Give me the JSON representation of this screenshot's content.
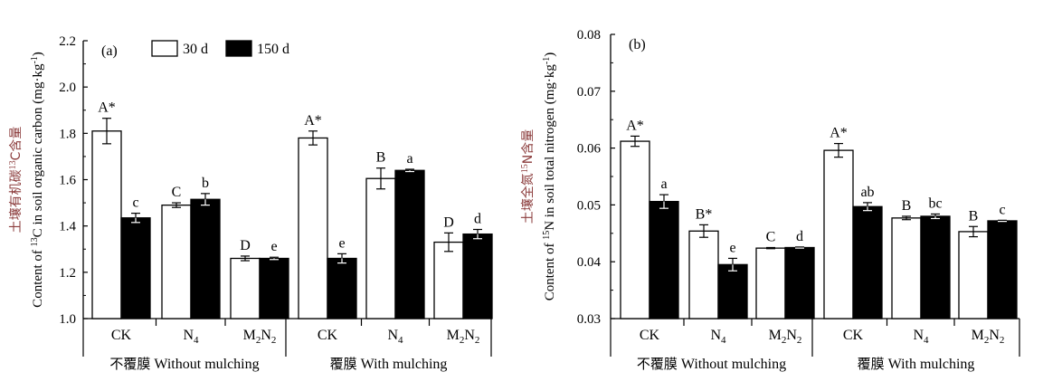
{
  "legend": [
    {
      "label": "30 d",
      "fill": "#ffffff"
    },
    {
      "label": "150 d",
      "fill": "#000000"
    }
  ],
  "chart_data": [
    {
      "type": "bar",
      "panel_label": "(a)",
      "ylabel_cn": "土壤有机碳",
      "ylabel_cn_sup": "13",
      "ylabel_cn_tail": "C含量",
      "ylabel_en_pre": "Content of ",
      "ylabel_en_sup": "13",
      "ylabel_en_mid": "C in soil organic carbon (mg·kg",
      "ylabel_en_sup2": "-1",
      "ylabel_en_tail": ")",
      "ylim": [
        1.0,
        2.2
      ],
      "yticks": [
        "1.0",
        "1.2",
        "1.4",
        "1.6",
        "1.8",
        "2.0",
        "2.2"
      ],
      "categories": [
        {
          "main": "CK",
          "sub": ""
        },
        {
          "main": "N",
          "sub": "4"
        },
        {
          "main": "M",
          "sub": "2",
          "main2": "N",
          "sub2": "2"
        },
        {
          "main": "CK",
          "sub": ""
        },
        {
          "main": "N",
          "sub": "4"
        },
        {
          "main": "M",
          "sub": "2",
          "main2": "N",
          "sub2": "2"
        }
      ],
      "groups": [
        {
          "label_cn": "不覆膜",
          "label_en": "Without mulching"
        },
        {
          "label_cn": "覆膜",
          "label_en": "With mulching"
        }
      ],
      "series": [
        {
          "name": "30 d",
          "values": [
            1.81,
            1.49,
            1.26,
            1.78,
            1.605,
            1.33
          ],
          "errors": [
            0.055,
            0.01,
            0.01,
            0.03,
            0.045,
            0.04
          ],
          "letters": [
            "A*",
            "C",
            "D",
            "A*",
            "B",
            "D"
          ]
        },
        {
          "name": "150 d",
          "values": [
            1.435,
            1.515,
            1.26,
            1.26,
            1.64,
            1.365
          ],
          "errors": [
            0.02,
            0.025,
            0.005,
            0.02,
            0.005,
            0.02
          ],
          "letters": [
            "c",
            "b",
            "e",
            "e",
            "a",
            "d"
          ]
        }
      ]
    },
    {
      "type": "bar",
      "panel_label": "(b)",
      "ylabel_cn": "土壤全氮",
      "ylabel_cn_sup": "15",
      "ylabel_cn_tail": "N含量",
      "ylabel_en_pre": "Content of ",
      "ylabel_en_sup": "15",
      "ylabel_en_mid": "N in soil total nitrogen (mg·kg",
      "ylabel_en_sup2": "-1",
      "ylabel_en_tail": ")",
      "ylim": [
        0.03,
        0.08
      ],
      "yticks": [
        "0.03",
        "0.04",
        "0.05",
        "0.06",
        "0.07",
        "0.08"
      ],
      "categories": [
        {
          "main": "CK",
          "sub": ""
        },
        {
          "main": "N",
          "sub": "4"
        },
        {
          "main": "M",
          "sub": "2",
          "main2": "N",
          "sub2": "2"
        },
        {
          "main": "CK",
          "sub": ""
        },
        {
          "main": "N",
          "sub": "4"
        },
        {
          "main": "M",
          "sub": "2",
          "main2": "N",
          "sub2": "2"
        }
      ],
      "groups": [
        {
          "label_cn": "不覆膜",
          "label_en": "Without mulching"
        },
        {
          "label_cn": "覆膜",
          "label_en": "With mulching"
        }
      ],
      "series": [
        {
          "name": "30 d",
          "values": [
            0.0612,
            0.0454,
            0.0424,
            0.0596,
            0.0477,
            0.0453
          ],
          "errors": [
            0.0009,
            0.0011,
            0.0001,
            0.0012,
            0.0003,
            0.0009
          ],
          "letters": [
            "A*",
            "B*",
            "C",
            "A*",
            "B",
            "B"
          ]
        },
        {
          "name": "150 d",
          "values": [
            0.0506,
            0.0395,
            0.0425,
            0.0497,
            0.048,
            0.0472
          ],
          "errors": [
            0.0012,
            0.0011,
            0.0001,
            0.0007,
            0.0004,
            0.0001
          ],
          "letters": [
            "a",
            "e",
            "d",
            "ab",
            "bc",
            "c"
          ]
        }
      ]
    }
  ]
}
